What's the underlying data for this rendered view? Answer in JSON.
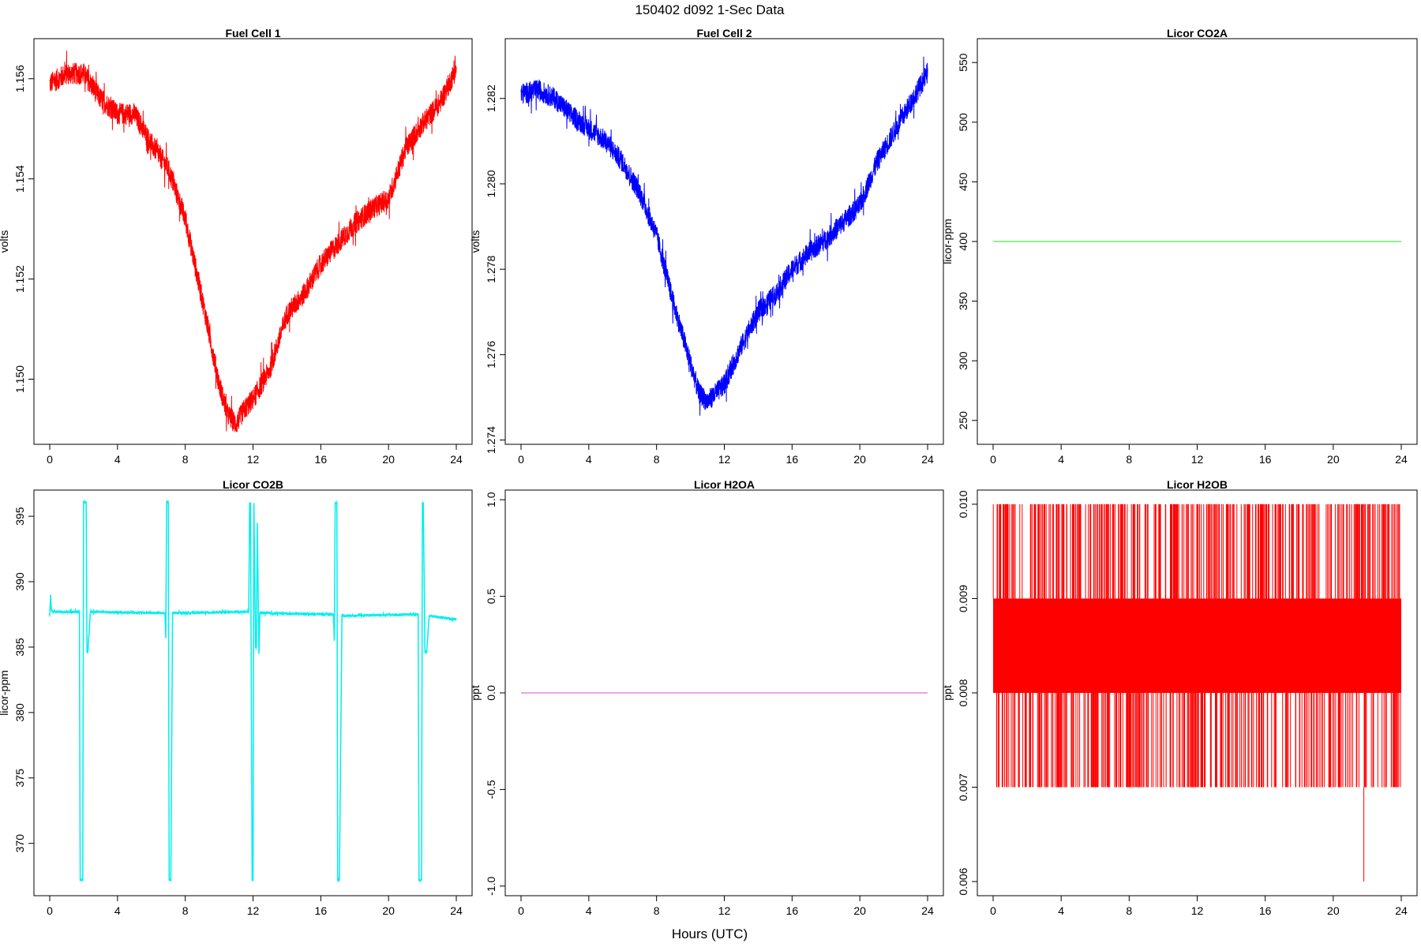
{
  "figure": {
    "title": "150402   d092   1-Sec Data",
    "xlabel": "Hours (UTC)"
  },
  "chart_data": [
    {
      "type": "line",
      "title": "Fuel Cell 1",
      "ylabel": "volts",
      "xlim": [
        0,
        24
      ],
      "ylim": [
        1.1487,
        1.1568
      ],
      "xticks": [
        0,
        4,
        8,
        12,
        16,
        20,
        24
      ],
      "yticks": [
        "1.150",
        "1.152",
        "1.154",
        "1.156"
      ],
      "color": "#ff0000",
      "noise": 0.00022,
      "series": [
        {
          "x": [
            0,
            1,
            2,
            3,
            4,
            5,
            6,
            7,
            8,
            9,
            10,
            10.5,
            11,
            11.5,
            12,
            13,
            14,
            15,
            16,
            17,
            18,
            19,
            20,
            21,
            22,
            23,
            24
          ],
          "y": [
            1.1559,
            1.1561,
            1.1561,
            1.1556,
            1.1553,
            1.1553,
            1.1547,
            1.1542,
            1.1532,
            1.1516,
            1.1499,
            1.1493,
            1.1491,
            1.1494,
            1.1496,
            1.1502,
            1.1513,
            1.1517,
            1.1523,
            1.1527,
            1.1531,
            1.1534,
            1.1536,
            1.1546,
            1.1551,
            1.1555,
            1.1562
          ]
        }
      ]
    },
    {
      "type": "line",
      "title": "Fuel Cell 2",
      "ylabel": "volts",
      "xlim": [
        0,
        24
      ],
      "ylim": [
        1.2739,
        1.2834
      ],
      "xticks": [
        0,
        4,
        8,
        12,
        16,
        20,
        24
      ],
      "yticks": [
        "1.274",
        "1.276",
        "1.278",
        "1.280",
        "1.282"
      ],
      "color": "#0000ff",
      "noise": 0.00025,
      "series": [
        {
          "x": [
            0,
            1,
            2,
            3,
            4,
            5,
            6,
            7,
            8,
            9,
            10,
            10.5,
            11,
            11.5,
            12,
            13,
            14,
            15,
            16,
            17,
            18,
            19,
            20,
            21,
            22,
            23,
            24
          ],
          "y": [
            1.2821,
            1.2822,
            1.282,
            1.2816,
            1.2813,
            1.281,
            1.2805,
            1.2798,
            1.2788,
            1.2772,
            1.2758,
            1.2751,
            1.2749,
            1.2751,
            1.2753,
            1.2762,
            1.277,
            1.2774,
            1.278,
            1.2784,
            1.2787,
            1.2791,
            1.2795,
            1.2805,
            1.2812,
            1.2819,
            1.2826
          ]
        }
      ]
    },
    {
      "type": "line",
      "title": "Licor CO2A",
      "ylabel": "licor-ppm",
      "xlim": [
        0,
        24
      ],
      "ylim": [
        230,
        570
      ],
      "xticks": [
        0,
        4,
        8,
        12,
        16,
        20,
        24
      ],
      "yticks": [
        "250",
        "300",
        "350",
        "400",
        "450",
        "500",
        "550"
      ],
      "color": "#66ee66",
      "noise": 0,
      "series": [
        {
          "x": [
            0,
            24
          ],
          "y": [
            400,
            400
          ]
        }
      ]
    },
    {
      "type": "line",
      "title": "Licor CO2B",
      "ylabel": "licor-ppm",
      "xlim": [
        0,
        24
      ],
      "ylim": [
        366,
        397
      ],
      "xticks": [
        0,
        4,
        8,
        12,
        16,
        20,
        24
      ],
      "yticks": [
        "370",
        "375",
        "380",
        "385",
        "390",
        "395"
      ],
      "color": "#00eeee",
      "noise": 0.12,
      "series": [
        {
          "x": [
            0,
            0.05,
            0.1,
            0.2,
            1.75,
            1.8,
            1.85,
            1.95,
            2.0,
            2.05,
            2.15,
            2.2,
            2.25,
            2.4,
            6.8,
            6.85,
            6.9,
            7.0,
            7.05,
            7.1,
            7.15,
            7.25,
            11.75,
            11.8,
            11.85,
            11.95,
            12.0,
            12.05,
            12.15,
            12.2,
            12.25,
            12.35,
            12.4,
            12.5,
            16.75,
            16.8,
            16.85,
            16.95,
            17.0,
            17.05,
            17.1,
            17.25,
            21.75,
            21.8,
            21.85,
            21.95,
            22.0,
            22.05,
            22.15,
            22.2,
            22.25,
            22.4,
            24.0
          ],
          "y": [
            387.4,
            389.0,
            387.8,
            387.7,
            387.7,
            367.2,
            367.2,
            367.2,
            396.1,
            396.1,
            396.1,
            384.6,
            384.6,
            387.7,
            387.6,
            385.7,
            396.1,
            396.1,
            367.2,
            367.2,
            367.2,
            387.6,
            387.7,
            396.0,
            396.0,
            367.2,
            367.2,
            396.0,
            385.0,
            385.0,
            394.5,
            384.5,
            387.6,
            387.6,
            387.5,
            385.5,
            396.0,
            396.0,
            367.2,
            367.2,
            367.2,
            387.4,
            387.5,
            367.2,
            367.2,
            367.2,
            396.0,
            396.0,
            384.6,
            384.6,
            384.6,
            387.4,
            387.1
          ]
        }
      ]
    },
    {
      "type": "line",
      "title": "Licor H2OA",
      "ylabel": "ppt",
      "xlim": [
        0,
        24
      ],
      "ylim": [
        -1.05,
        1.05
      ],
      "xticks": [
        0,
        4,
        8,
        12,
        16,
        20,
        24
      ],
      "yticks": [
        "-1.0",
        "-0.5",
        "0.0",
        "0.5",
        "1.0"
      ],
      "color": "#dd88dd",
      "noise": 0,
      "series": [
        {
          "x": [
            0,
            24
          ],
          "y": [
            0,
            0
          ]
        }
      ]
    },
    {
      "type": "line",
      "title": "Licor H2OB",
      "ylabel": "ppt",
      "xlim": [
        0,
        24
      ],
      "ylim": [
        0.00585,
        0.01015
      ],
      "xticks": [
        0,
        4,
        8,
        12,
        16,
        20,
        24
      ],
      "yticks": [
        "0.006",
        "0.007",
        "0.008",
        "0.009",
        "0.010"
      ],
      "color": "#ff0000",
      "noise": 0,
      "band": {
        "x": [
          0,
          24
        ],
        "low": 0.008,
        "high": 0.009
      },
      "spike_range": {
        "low": 0.007,
        "high": 0.01
      },
      "min_point": {
        "x": 21.8,
        "y": 0.006
      },
      "series": [
        {
          "x": [
            0,
            24
          ],
          "y": [
            0.008,
            0.009
          ]
        }
      ]
    }
  ]
}
